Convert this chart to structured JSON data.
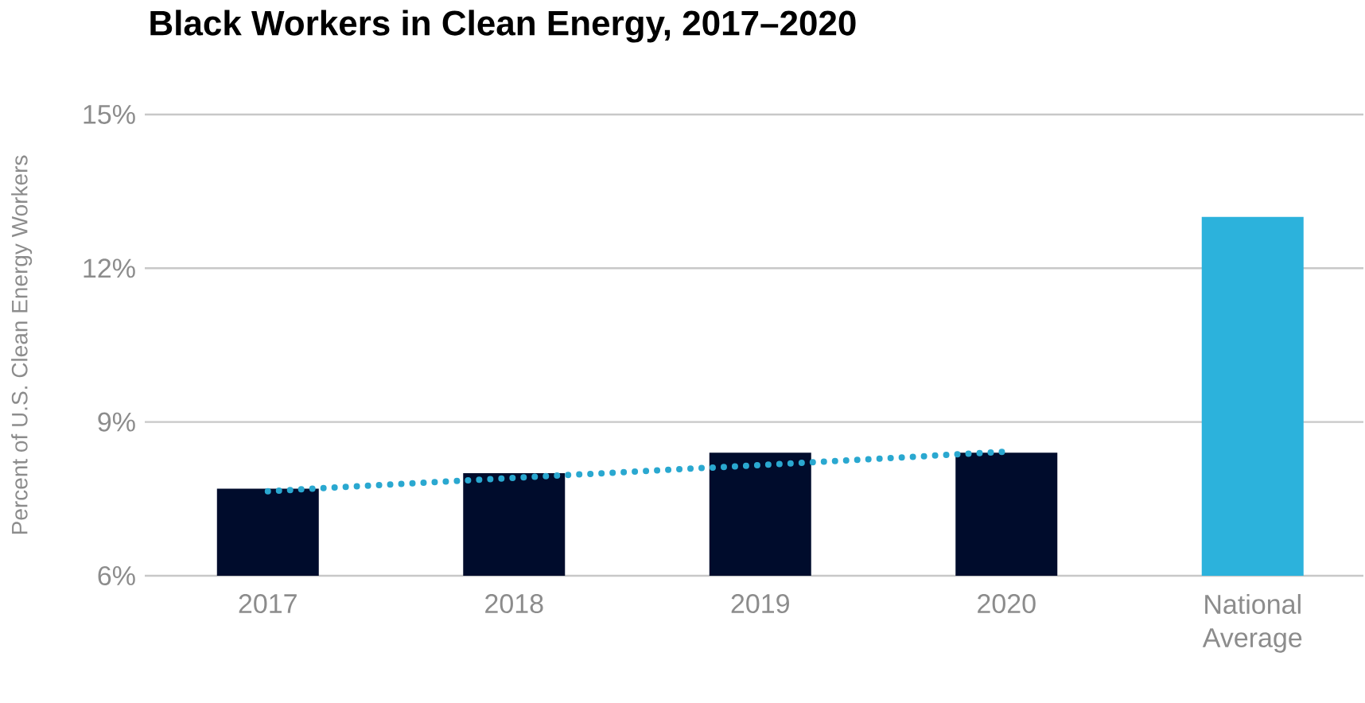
{
  "chart_data": {
    "type": "bar",
    "title": "Black Workers in Clean Energy, 2017–2020",
    "ylabel": "Percent of U.S. Clean Energy Workers",
    "categories": [
      "2017",
      "2018",
      "2019",
      "2020",
      "National Average"
    ],
    "series": [
      {
        "values": [
          7.7,
          8.0,
          8.4,
          8.4,
          13.0
        ],
        "colors": [
          "#000c2c",
          "#000c2c",
          "#000c2c",
          "#000c2c",
          "#2cb2dc"
        ]
      },
      {
        "type": "line",
        "values": [
          7.65,
          7.91,
          8.16,
          8.42,
          null
        ],
        "color": "#2aa8d0",
        "line_style": "dotted"
      }
    ],
    "ylim": [
      6,
      15
    ],
    "yticks": [
      {
        "value": 6,
        "label": "6%"
      },
      {
        "value": 9,
        "label": "9%"
      },
      {
        "value": 12,
        "label": "12%"
      },
      {
        "value": 15,
        "label": "15%"
      }
    ],
    "grid": "y"
  }
}
